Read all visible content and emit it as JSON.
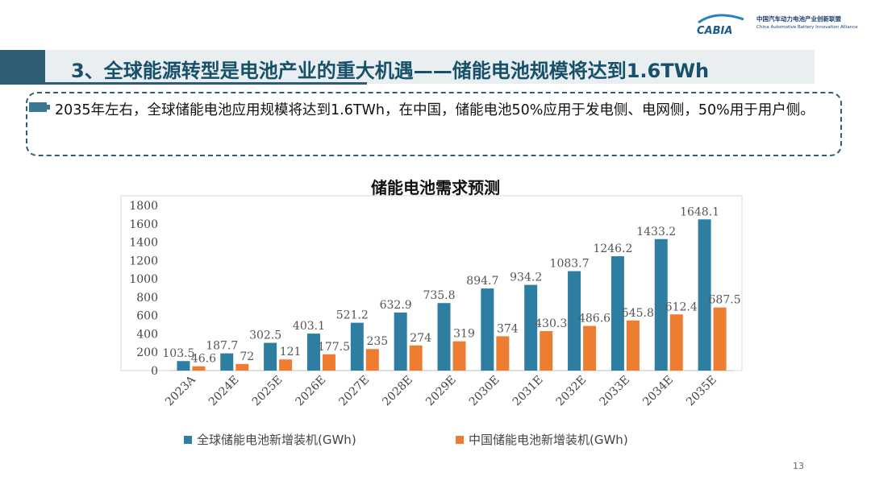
{
  "logo": {
    "brand": "CABIA",
    "cn": "中国汽车动力电池产业创新联盟",
    "en": "China Automotive Battery Innovation Alliance"
  },
  "title": "3、全球能源转型是电池产业的重大机遇——储能电池规模将达到1.6TWh",
  "note": "2035年左右，全球储能电池应用规模将达到1.6TWh，在中国，储能电池50%应用于发电侧、电网侧，50%用于用户侧。",
  "page_number": "13",
  "colors": {
    "primary": "#2e7ea1",
    "secondary": "#ef7d31",
    "title": "#17506a",
    "band": "#2f5d73"
  },
  "chart_data": {
    "type": "bar",
    "title": "储能电池需求预测",
    "categories": [
      "2023A",
      "2024E",
      "2025E",
      "2026E",
      "2027E",
      "2028E",
      "2029E",
      "2030E",
      "2031E",
      "2032E",
      "2033E",
      "2034E",
      "2035E"
    ],
    "series": [
      {
        "name": "全球储能电池新增装机(GWh)",
        "values": [
          103.5,
          187.7,
          302.5,
          403.1,
          521.2,
          632.9,
          735.8,
          894.7,
          934.2,
          1083.7,
          1246.2,
          1433.2,
          1648.1
        ]
      },
      {
        "name": "中国储能电池新增装机(GWh)",
        "values": [
          46.6,
          72,
          121,
          177.5,
          235,
          274,
          319,
          374,
          430.3,
          486.6,
          545.8,
          612.4,
          687.5
        ]
      }
    ],
    "data_labels": [
      [
        "103.5",
        "187.7",
        "302.5",
        "403.1",
        "521.2",
        "632.9",
        "735.8",
        "894.7",
        "934.2",
        "1083.7",
        "1246.2",
        "1433.2",
        "1648.1"
      ],
      [
        "46.6",
        "72",
        "121",
        "177.5",
        "235",
        "274",
        "319",
        "374",
        "430.3",
        "486.6",
        "545.8",
        "612.4",
        "687.5"
      ]
    ],
    "ylim": [
      0,
      1800
    ],
    "yticks": [
      "0",
      "200",
      "400",
      "600",
      "800",
      "1000",
      "1200",
      "1400",
      "1600",
      "1800"
    ],
    "legend": "bottom",
    "grid": false
  }
}
